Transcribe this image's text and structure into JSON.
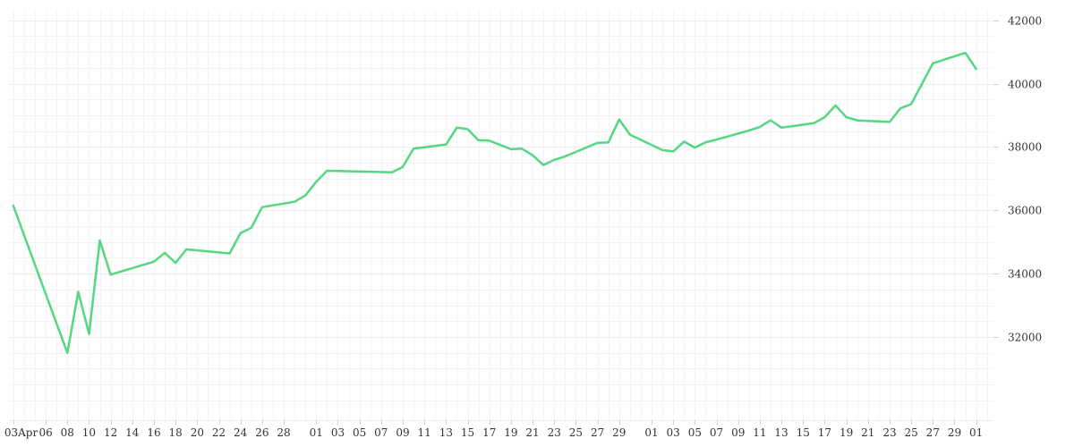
{
  "chart_data": {
    "type": "line",
    "title": "",
    "xlabel": "",
    "ylabel": "",
    "ylim": [
      29800,
      42300
    ],
    "y_ticks": [
      32000,
      34000,
      36000,
      38000,
      40000,
      42000
    ],
    "y_tick_labels": [
      "32000",
      "34000",
      "36000",
      "38000",
      "40000",
      "42000"
    ],
    "x_tick_labels": [
      "03Apr",
      "06",
      "08",
      "10",
      "12",
      "14",
      "16",
      "18",
      "20",
      "22",
      "24",
      "26",
      "28",
      "01",
      "03",
      "05",
      "07",
      "09",
      "11",
      "13",
      "15",
      "17",
      "19",
      "21",
      "23",
      "25",
      "27",
      "29",
      "01",
      "03",
      "05",
      "07",
      "09",
      "11",
      "13",
      "15",
      "17",
      "19",
      "21",
      "23",
      "25",
      "27",
      "29",
      "01"
    ],
    "x_tick_days": [
      0,
      3,
      5,
      7,
      9,
      11,
      13,
      15,
      17,
      19,
      21,
      23,
      25,
      28,
      30,
      32,
      34,
      36,
      38,
      40,
      42,
      44,
      46,
      48,
      50,
      52,
      54,
      56,
      59,
      61,
      63,
      65,
      67,
      69,
      71,
      73,
      75,
      77,
      79,
      81,
      83,
      85,
      87,
      89
    ],
    "x_day_range": [
      -0.4,
      90.6
    ],
    "grid": true,
    "legend": "none",
    "line_color": "#55d782",
    "series": [
      {
        "x": [
          0,
          5,
          6,
          7,
          8,
          9,
          13,
          14,
          15,
          16,
          20,
          21,
          22,
          23,
          26,
          27,
          28,
          29,
          35,
          36,
          37,
          40,
          41,
          42,
          43,
          44,
          46,
          47,
          48,
          49,
          50,
          51,
          54,
          55,
          56,
          57,
          60,
          61,
          62,
          63,
          64,
          65,
          68,
          69,
          70,
          71,
          74,
          75,
          76,
          77,
          78,
          81,
          82,
          83,
          85,
          88,
          89
        ],
        "y": [
          36150,
          31500,
          33430,
          32100,
          35050,
          33970,
          34380,
          34660,
          34340,
          34770,
          34640,
          35280,
          35450,
          36100,
          36270,
          36470,
          36900,
          37250,
          37200,
          37370,
          37950,
          38080,
          38610,
          38560,
          38210,
          38200,
          37930,
          37950,
          37740,
          37430,
          37590,
          37700,
          38130,
          38140,
          38870,
          38390,
          37900,
          37860,
          38170,
          37980,
          38150,
          38230,
          38520,
          38630,
          38840,
          38610,
          38750,
          38940,
          39310,
          38940,
          38840,
          38790,
          39220,
          39350,
          40640,
          40970,
          40460
        ]
      }
    ]
  }
}
